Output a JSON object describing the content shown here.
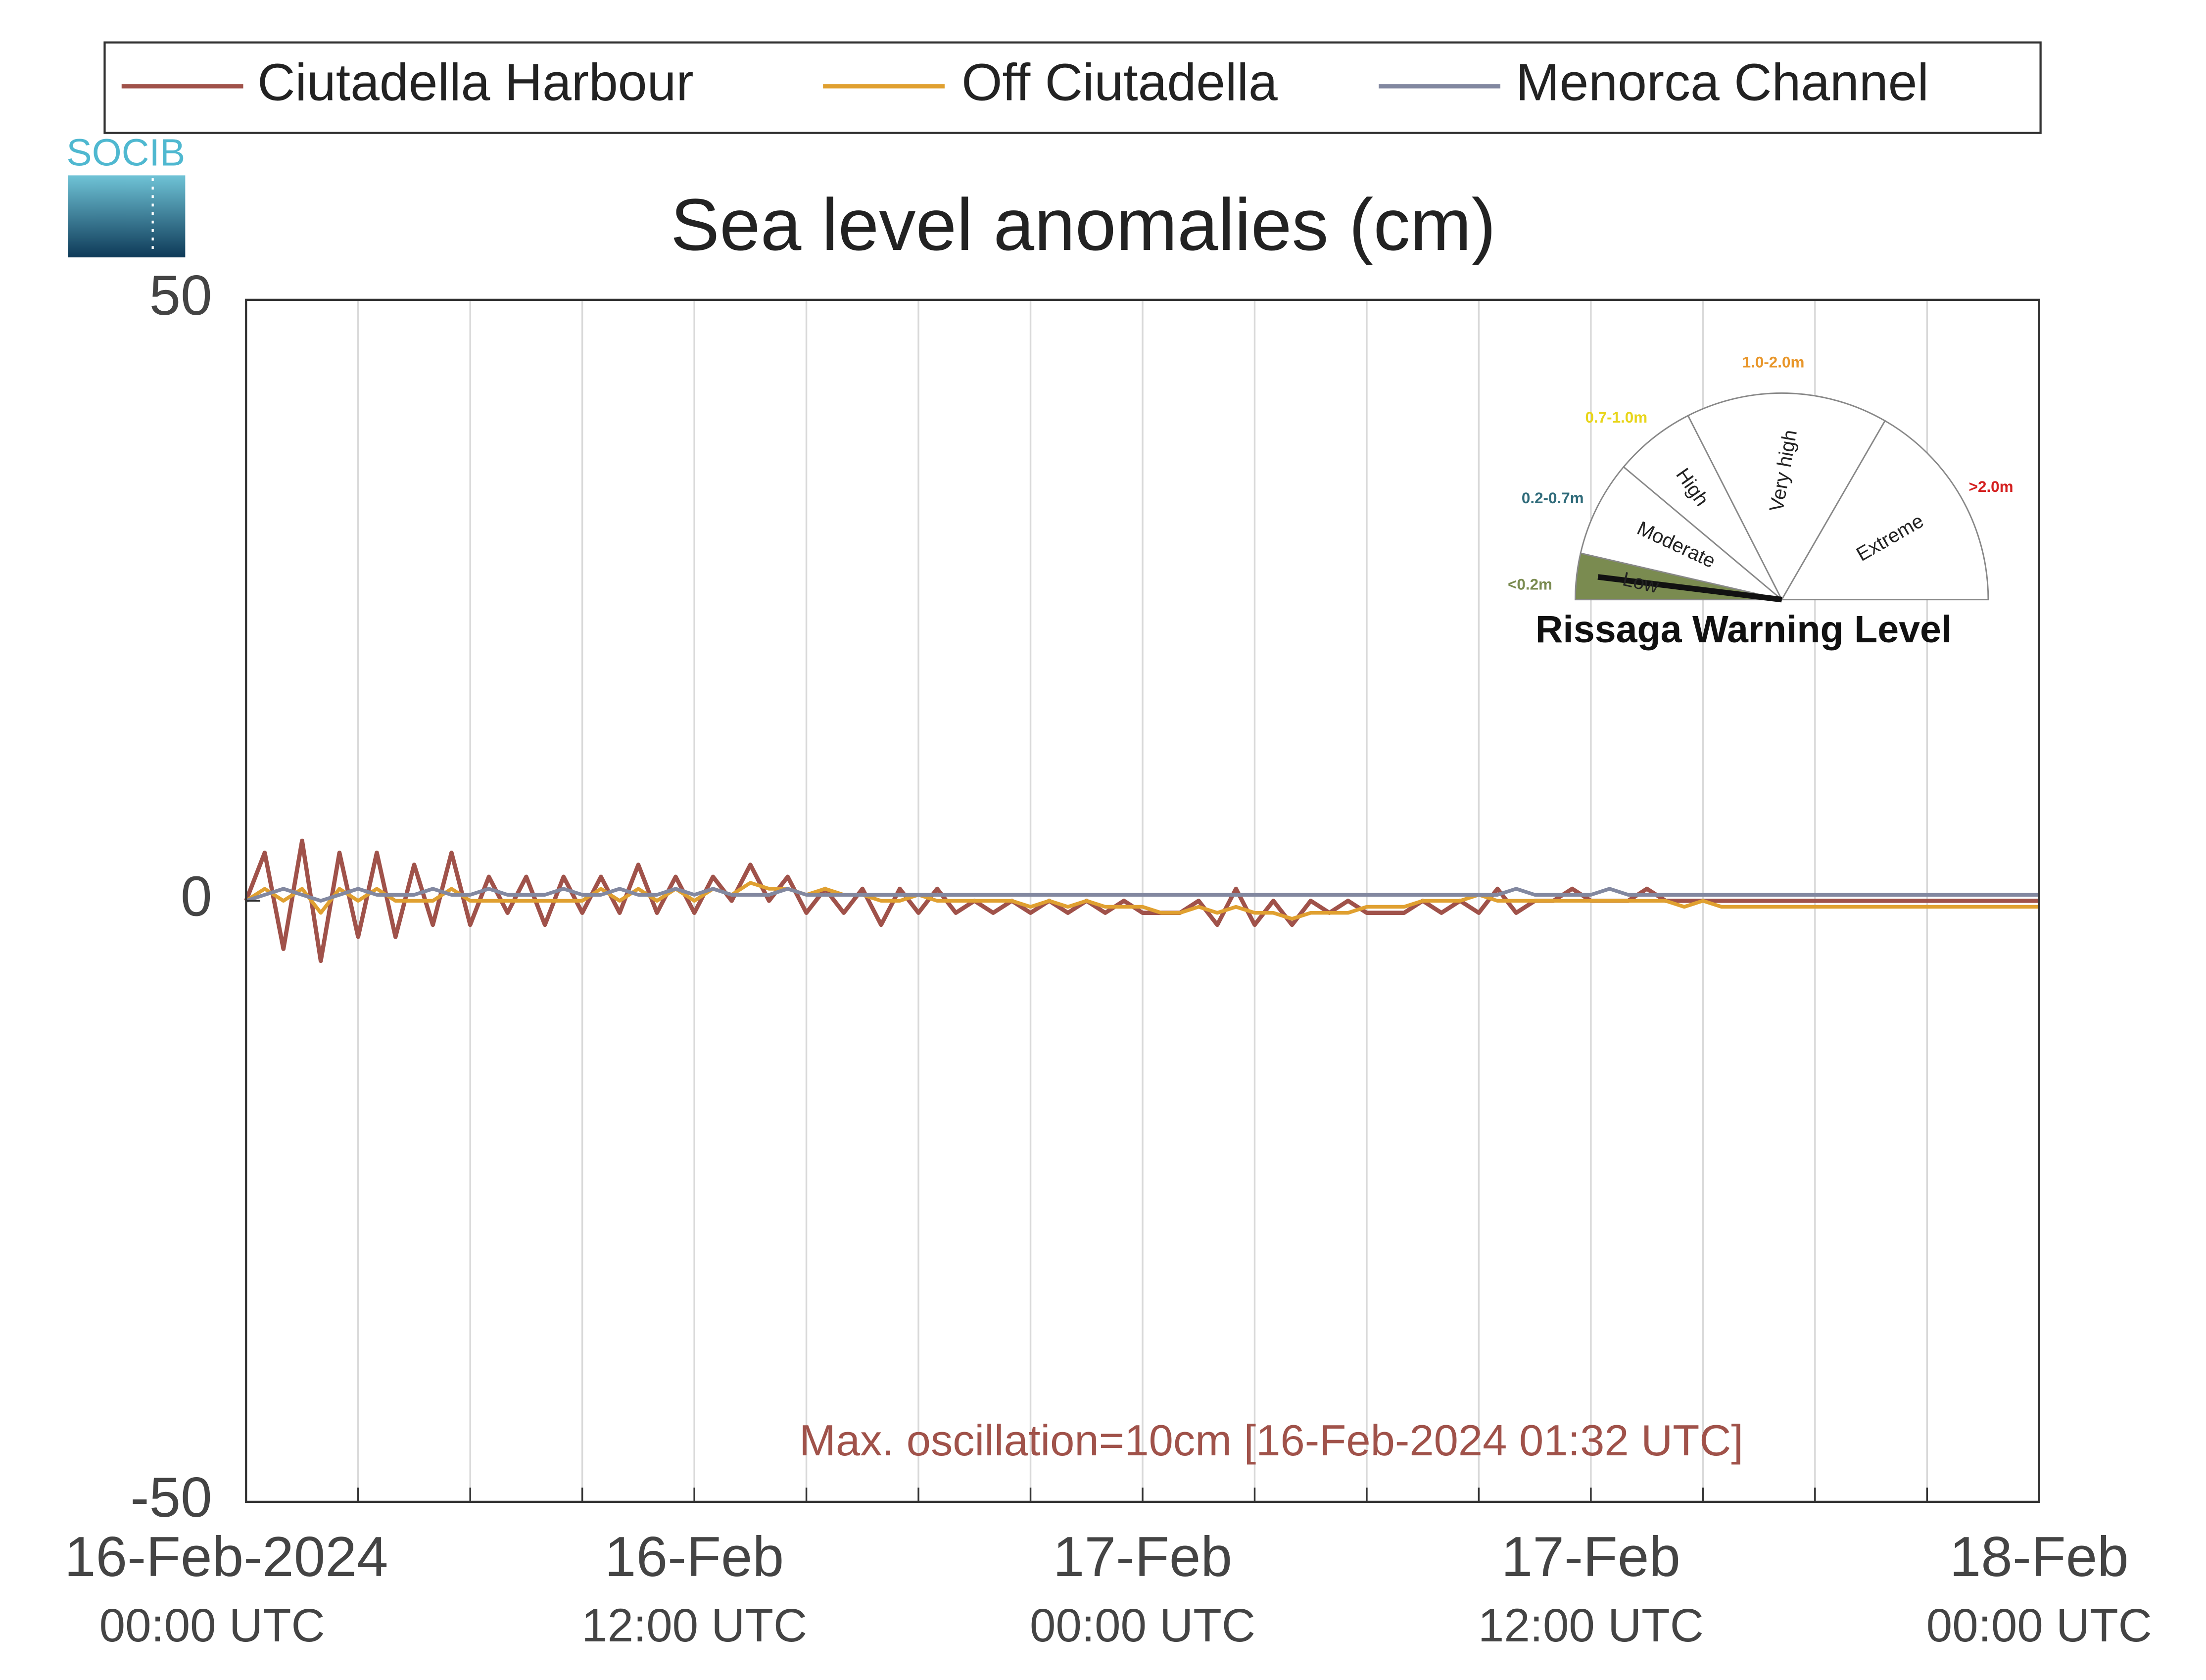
{
  "logo": "SOCIB",
  "chart_data": {
    "type": "line",
    "title": "Sea level anomalies (cm)",
    "annotation": "Max. oscillation=10cm [16-Feb-2024 01:32 UTC]",
    "x": [
      "2024-02-16T00:00",
      "2024-02-16T00:30",
      "2024-02-16T01:00",
      "2024-02-16T01:30",
      "2024-02-16T02:00",
      "2024-02-16T02:30",
      "2024-02-16T03:00",
      "2024-02-16T03:30",
      "2024-02-16T04:00",
      "2024-02-16T04:30",
      "2024-02-16T05:00",
      "2024-02-16T05:30",
      "2024-02-16T06:00",
      "2024-02-16T06:30",
      "2024-02-16T07:00",
      "2024-02-16T07:30",
      "2024-02-16T08:00",
      "2024-02-16T08:30",
      "2024-02-16T09:00",
      "2024-02-16T09:30",
      "2024-02-16T10:00",
      "2024-02-16T10:30",
      "2024-02-16T11:00",
      "2024-02-16T11:30",
      "2024-02-16T12:00",
      "2024-02-16T12:30",
      "2024-02-16T13:00",
      "2024-02-16T13:30",
      "2024-02-16T14:00",
      "2024-02-16T14:30",
      "2024-02-16T15:00",
      "2024-02-16T15:30",
      "2024-02-16T16:00",
      "2024-02-16T16:30",
      "2024-02-16T17:00",
      "2024-02-16T17:30",
      "2024-02-16T18:00",
      "2024-02-16T18:30",
      "2024-02-16T19:00",
      "2024-02-16T19:30",
      "2024-02-16T20:00",
      "2024-02-16T20:30",
      "2024-02-16T21:00",
      "2024-02-16T21:30",
      "2024-02-16T22:00",
      "2024-02-16T22:30",
      "2024-02-16T23:00",
      "2024-02-16T23:30",
      "2024-02-17T00:00",
      "2024-02-17T00:30",
      "2024-02-17T01:00",
      "2024-02-17T01:30",
      "2024-02-17T02:00",
      "2024-02-17T02:30",
      "2024-02-17T03:00",
      "2024-02-17T03:30",
      "2024-02-17T04:00",
      "2024-02-17T04:30",
      "2024-02-17T05:00",
      "2024-02-17T05:30",
      "2024-02-17T06:00",
      "2024-02-17T06:30",
      "2024-02-17T07:00",
      "2024-02-17T07:30",
      "2024-02-17T08:00",
      "2024-02-17T08:30",
      "2024-02-17T09:00",
      "2024-02-17T09:30",
      "2024-02-17T10:00",
      "2024-02-17T10:30",
      "2024-02-17T11:00",
      "2024-02-17T11:30",
      "2024-02-17T12:00",
      "2024-02-17T12:30",
      "2024-02-17T13:00",
      "2024-02-17T13:30",
      "2024-02-17T14:00",
      "2024-02-17T14:30",
      "2024-02-17T15:00",
      "2024-02-17T15:30",
      "2024-02-17T16:00",
      "2024-02-17T16:30",
      "2024-02-17T17:00",
      "2024-02-17T17:30",
      "2024-02-17T18:00",
      "2024-02-17T18:30",
      "2024-02-17T19:00",
      "2024-02-17T19:30",
      "2024-02-17T20:00",
      "2024-02-17T20:30",
      "2024-02-17T21:00",
      "2024-02-17T21:30",
      "2024-02-17T22:00",
      "2024-02-17T22:30",
      "2024-02-17T23:00",
      "2024-02-17T23:30",
      "2024-02-18T00:00"
    ],
    "series": [
      {
        "name": "Ciutadella Harbour",
        "color": "#a0524a",
        "values": [
          0,
          4,
          -4,
          5,
          -5,
          4,
          -3,
          4,
          -3,
          3,
          -2,
          4,
          -2,
          2,
          -1,
          2,
          -2,
          2,
          -1,
          2,
          -1,
          3,
          -1,
          2,
          -1,
          2,
          0,
          3,
          0,
          2,
          -1,
          1,
          -1,
          1,
          -2,
          1,
          -1,
          1,
          -1,
          0,
          -1,
          0,
          -1,
          0,
          -1,
          0,
          -1,
          0,
          -1,
          -1,
          -1,
          0,
          -2,
          1,
          -2,
          0,
          -2,
          0,
          -1,
          0,
          -1,
          -1,
          -1,
          0,
          -1,
          0,
          -1,
          1,
          -1,
          0,
          0,
          1,
          0,
          0,
          0,
          1,
          0,
          0,
          0,
          0,
          0,
          0,
          0,
          0,
          0,
          0,
          0,
          0,
          0,
          0,
          0,
          0,
          0,
          0,
          0,
          0,
          0
        ]
      },
      {
        "name": "Off Ciutadella",
        "color": "#e0a030",
        "values": [
          0,
          1,
          0,
          1,
          -1,
          1,
          0,
          1,
          0,
          0,
          0,
          1,
          0,
          0,
          0,
          0,
          0,
          0,
          0,
          1,
          0,
          1,
          0,
          1,
          0,
          1,
          0.5,
          1.5,
          1,
          1,
          0.5,
          1,
          0.5,
          0.5,
          0,
          0,
          0.5,
          0,
          0,
          0,
          0,
          0,
          -0.5,
          0,
          -0.5,
          0,
          -0.5,
          -0.5,
          -0.5,
          -1,
          -1,
          -0.5,
          -1,
          -0.5,
          -1,
          -1,
          -1.5,
          -1,
          -1,
          -1,
          -0.5,
          -0.5,
          -0.5,
          0,
          0,
          0,
          0.5,
          0,
          0,
          0,
          0,
          0,
          0,
          0,
          0,
          0,
          0,
          -0.5,
          0,
          -0.5,
          -0.5,
          -0.5,
          -0.5,
          -0.5,
          -0.5,
          -0.5,
          -0.5,
          -0.5,
          -0.5,
          -0.5,
          -0.5,
          -0.5,
          -0.5,
          -0.5,
          -0.5,
          -0.5,
          -0.5
        ]
      },
      {
        "name": "Menorca Channel",
        "color": "#8288a0",
        "values": [
          0,
          0.5,
          1,
          0.5,
          0,
          0.5,
          1,
          0.5,
          0.5,
          0.5,
          1,
          0.5,
          0.5,
          1,
          0.5,
          0.5,
          0.5,
          1,
          0.5,
          0.5,
          1,
          0.5,
          0.5,
          1,
          0.5,
          1,
          0.5,
          0.5,
          0.5,
          1,
          0.5,
          0.5,
          0.5,
          0.5,
          0.5,
          0.5,
          0.5,
          0.5,
          0.5,
          0.5,
          0.5,
          0.5,
          0.5,
          0.5,
          0.5,
          0.5,
          0.5,
          0.5,
          0.5,
          0.5,
          0.5,
          0.5,
          0.5,
          0.5,
          0.5,
          0.5,
          0.5,
          0.5,
          0.5,
          0.5,
          0.5,
          0.5,
          0.5,
          0.5,
          0.5,
          0.5,
          0.5,
          0.5,
          1,
          0.5,
          0.5,
          0.5,
          0.5,
          1,
          0.5,
          0.5,
          0.5,
          0.5,
          0.5,
          0.5,
          0.5,
          0.5,
          0.5,
          0.5,
          0.5,
          0.5,
          0.5,
          0.5,
          0.5,
          0.5,
          0.5,
          0.5,
          0.5,
          0.5,
          0.5,
          0.5,
          0.5
        ]
      }
    ],
    "xlim": [
      "2024-02-16T00:00",
      "2024-02-18T00:00"
    ],
    "xticks": [
      {
        "value": "2024-02-16T00:00",
        "label": [
          "16-Feb-2024",
          "00:00 UTC"
        ]
      },
      {
        "value": "2024-02-16T03:00",
        "label": null
      },
      {
        "value": "2024-02-16T06:00",
        "label": null
      },
      {
        "value": "2024-02-16T09:00",
        "label": null
      },
      {
        "value": "2024-02-16T12:00",
        "label": [
          "16-Feb",
          "12:00 UTC"
        ]
      },
      {
        "value": "2024-02-16T15:00",
        "label": null
      },
      {
        "value": "2024-02-16T18:00",
        "label": null
      },
      {
        "value": "2024-02-16T21:00",
        "label": null
      },
      {
        "value": "2024-02-17T00:00",
        "label": [
          "17-Feb",
          "00:00 UTC"
        ]
      },
      {
        "value": "2024-02-17T03:00",
        "label": null
      },
      {
        "value": "2024-02-17T06:00",
        "label": null
      },
      {
        "value": "2024-02-17T09:00",
        "label": null
      },
      {
        "value": "2024-02-17T12:00",
        "label": [
          "17-Feb",
          "12:00 UTC"
        ]
      },
      {
        "value": "2024-02-17T15:00",
        "label": null
      },
      {
        "value": "2024-02-17T18:00",
        "label": null
      },
      {
        "value": "2024-02-17T21:00",
        "label": null
      },
      {
        "value": "2024-02-18T00:00",
        "label": [
          "18-Feb",
          "00:00 UTC"
        ]
      }
    ],
    "ylim": [
      -50,
      50
    ],
    "yticks": [
      -50,
      0,
      50
    ],
    "grid": "x",
    "legend": "top",
    "warning_gauge": {
      "title": "Rissaga Warning Level",
      "levels": [
        {
          "name": "Low",
          "range": "<0.2m",
          "color": "#7a8b50"
        },
        {
          "name": "Moderate",
          "range": "0.2-0.7m",
          "color": "#2f6b7a"
        },
        {
          "name": "High",
          "range": "0.7-1.0m",
          "color": "#e8d51a"
        },
        {
          "name": "Very high",
          "range": "1.0-2.0m",
          "color": "#e8962a"
        },
        {
          "name": "Extreme",
          "range": ">2.0m",
          "color": "#d42020"
        }
      ]
    }
  }
}
